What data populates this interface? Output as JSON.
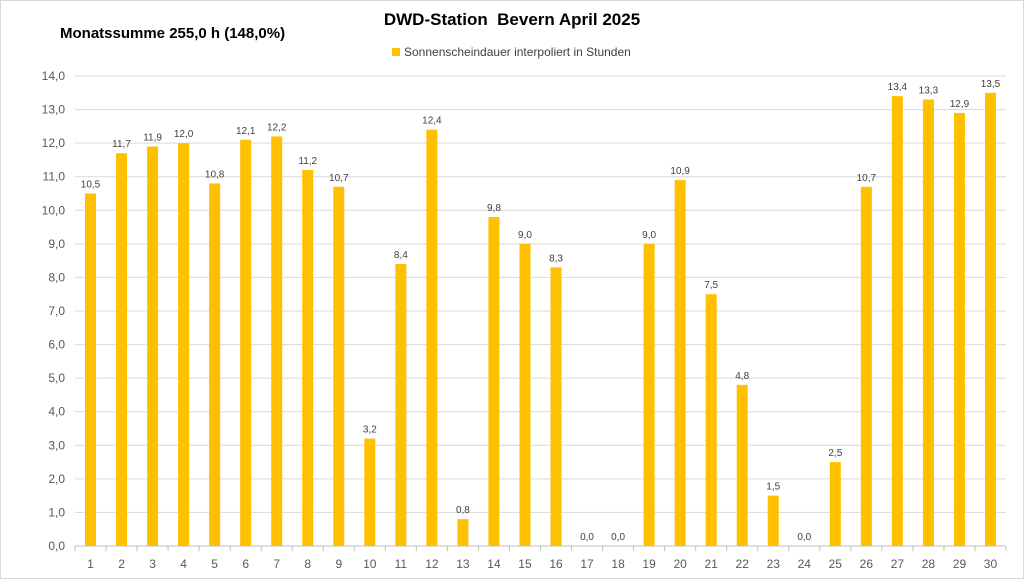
{
  "chart_data": {
    "type": "bar",
    "title": "DWD-Station  Bevern April 2025",
    "subtitle": "Monatssumme 255,0 h (148,0%)",
    "legend": "Sonnenscheindauer interpoliert in Stunden",
    "legend_position": "top",
    "grid": true,
    "ylim": [
      0,
      14
    ],
    "yticks": [
      "0,0",
      "1,0",
      "2,0",
      "3,0",
      "4,0",
      "5,0",
      "6,0",
      "7,0",
      "8,0",
      "9,0",
      "10,0",
      "11,0",
      "12,0",
      "13,0",
      "14,0"
    ],
    "categories": [
      "1",
      "2",
      "3",
      "4",
      "5",
      "6",
      "7",
      "8",
      "9",
      "10",
      "11",
      "12",
      "13",
      "14",
      "15",
      "16",
      "17",
      "18",
      "19",
      "20",
      "21",
      "22",
      "23",
      "24",
      "25",
      "26",
      "27",
      "28",
      "29",
      "30"
    ],
    "values": [
      10.5,
      11.7,
      11.9,
      12.0,
      10.8,
      12.1,
      12.2,
      11.2,
      10.7,
      3.2,
      8.4,
      12.4,
      0.8,
      9.8,
      9.0,
      8.3,
      0.0,
      0.0,
      9.0,
      10.9,
      7.5,
      4.8,
      1.5,
      0.0,
      2.5,
      10.7,
      13.4,
      13.3,
      12.9,
      13.5
    ],
    "data_labels": [
      "10,5",
      "11,7",
      "11,9",
      "12,0",
      "10,8",
      "12,1",
      "12,2",
      "11,2",
      "10,7",
      "3,2",
      "8,4",
      "12,4",
      "0,8",
      "9,8",
      "9,0",
      "8,3",
      "0,0",
      "0,0",
      "9,0",
      "10,9",
      "7,5",
      "4,8",
      "1,5",
      "0,0",
      "2,5",
      "10,7",
      "13,4",
      "13,3",
      "12,9",
      "13,5"
    ],
    "colors": {
      "bar": "#FFC000",
      "grid": "#d9d9d9",
      "axis": "#bfbfbf",
      "text": "#595959",
      "label": "#404040"
    }
  }
}
